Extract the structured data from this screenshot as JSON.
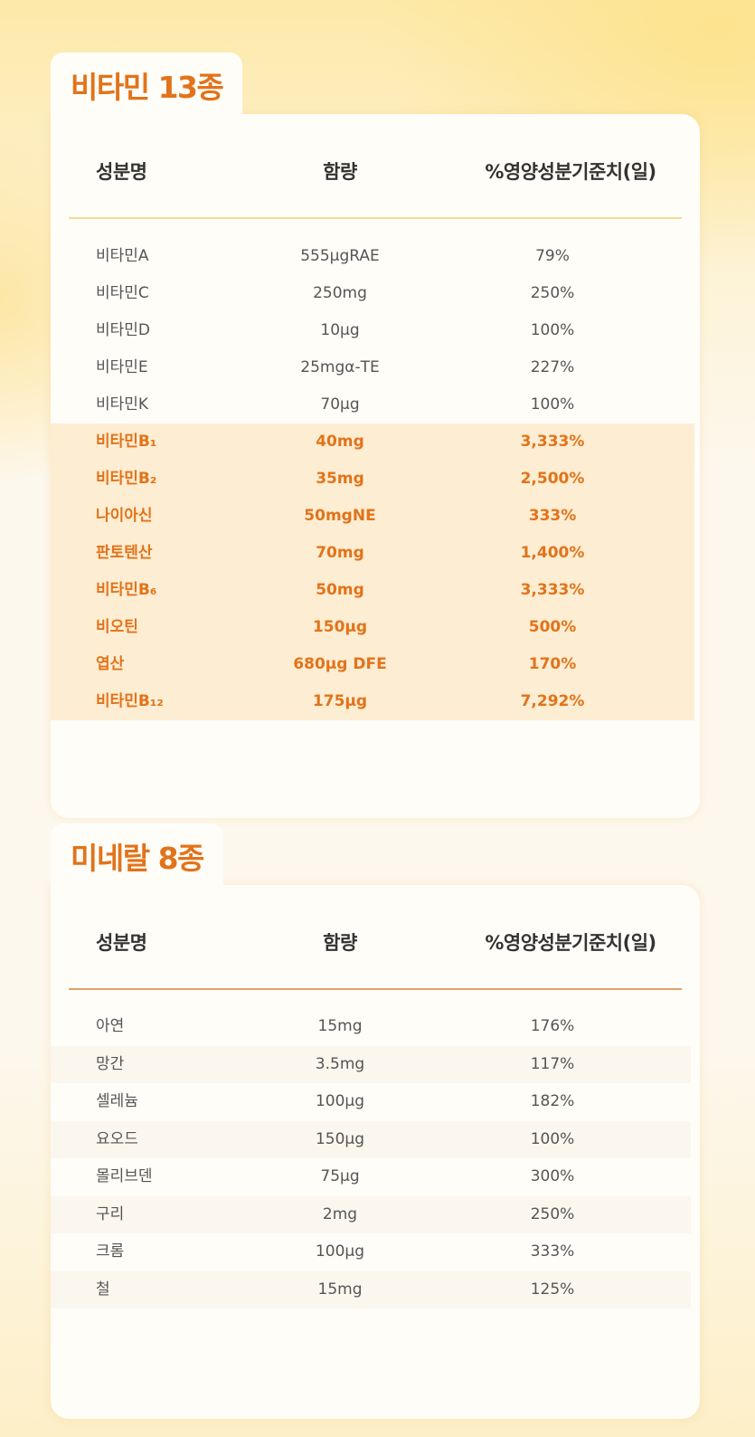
{
  "vitamins": {
    "title": "비타민 13종",
    "headers": {
      "name": "성분명",
      "amount": "함량",
      "percent": "%영양성분기준치(일)"
    },
    "rows": [
      {
        "name": "비타민A",
        "amount": "555μgRAE",
        "percent": "79%",
        "highlight": false
      },
      {
        "name": "비타민C",
        "amount": "250mg",
        "percent": "250%",
        "highlight": false
      },
      {
        "name": "비타민D",
        "amount": "10μg",
        "percent": "100%",
        "highlight": false
      },
      {
        "name": "비타민E",
        "amount": "25mgα-TE",
        "percent": "227%",
        "highlight": false
      },
      {
        "name": "비타민K",
        "amount": "70μg",
        "percent": "100%",
        "highlight": false
      },
      {
        "name": "비타민B₁",
        "amount": "40mg",
        "percent": "3,333%",
        "highlight": true
      },
      {
        "name": "비타민B₂",
        "amount": "35mg",
        "percent": "2,500%",
        "highlight": true
      },
      {
        "name": "나이아신",
        "amount": "50mgNE",
        "percent": "333%",
        "highlight": true
      },
      {
        "name": "판토텐산",
        "amount": "70mg",
        "percent": "1,400%",
        "highlight": true
      },
      {
        "name": "비타민B₆",
        "amount": "50mg",
        "percent": "3,333%",
        "highlight": true
      },
      {
        "name": "비오틴",
        "amount": "150μg",
        "percent": "500%",
        "highlight": true
      },
      {
        "name": "엽산",
        "amount": "680μg DFE",
        "percent": "170%",
        "highlight": true
      },
      {
        "name": "비타민B₁₂",
        "amount": "175μg",
        "percent": "7,292%",
        "highlight": true
      }
    ]
  },
  "minerals": {
    "title": "미네랄 8종",
    "headers": {
      "name": "성분명",
      "amount": "함량",
      "percent": "%영양성분기준치(일)"
    },
    "rows": [
      {
        "name": "아연",
        "amount": "15mg",
        "percent": "176%"
      },
      {
        "name": "망간",
        "amount": "3.5mg",
        "percent": "117%"
      },
      {
        "name": "셀레늄",
        "amount": "100μg",
        "percent": "182%"
      },
      {
        "name": "요오드",
        "amount": "150μg",
        "percent": "100%"
      },
      {
        "name": "몰리브덴",
        "amount": "75μg",
        "percent": "300%"
      },
      {
        "name": "구리",
        "amount": "2mg",
        "percent": "250%"
      },
      {
        "name": "크롬",
        "amount": "100μg",
        "percent": "333%"
      },
      {
        "name": "철",
        "amount": "15mg",
        "percent": "125%"
      }
    ]
  },
  "colors": {
    "accent": "#e2731a",
    "highlight_row": "#fdedd2",
    "header_rule_vitamin": "#f2dc94",
    "header_rule_mineral": "#e0a36a"
  }
}
